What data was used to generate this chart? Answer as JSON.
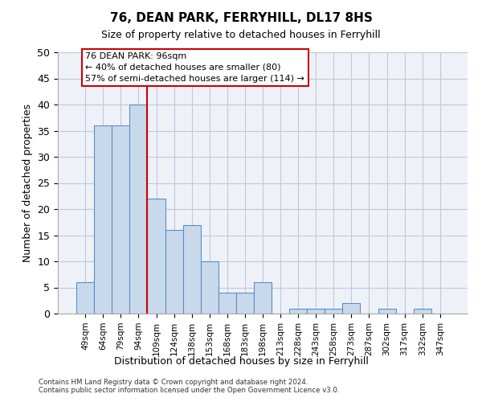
{
  "title": "76, DEAN PARK, FERRYHILL, DL17 8HS",
  "subtitle": "Size of property relative to detached houses in Ferryhill",
  "xlabel": "Distribution of detached houses by size in Ferryhill",
  "ylabel": "Number of detached properties",
  "bins": [
    "49sqm",
    "64sqm",
    "79sqm",
    "94sqm",
    "109sqm",
    "124sqm",
    "138sqm",
    "153sqm",
    "168sqm",
    "183sqm",
    "198sqm",
    "213sqm",
    "228sqm",
    "243sqm",
    "258sqm",
    "273sqm",
    "287sqm",
    "302sqm",
    "317sqm",
    "332sqm",
    "347sqm"
  ],
  "values": [
    6,
    36,
    36,
    40,
    22,
    16,
    17,
    10,
    4,
    4,
    6,
    0,
    1,
    1,
    1,
    2,
    0,
    1,
    0,
    1,
    0
  ],
  "bar_color": "#c9d9ec",
  "bar_edge_color": "#5a8fc3",
  "vline_x_index": 3.5,
  "vline_color": "#cc0000",
  "annotation_text": "76 DEAN PARK: 96sqm\n← 40% of detached houses are smaller (80)\n57% of semi-detached houses are larger (114) →",
  "annotation_box_color": "#ffffff",
  "annotation_box_edge_color": "#cc0000",
  "ylim": [
    0,
    50
  ],
  "yticks": [
    0,
    5,
    10,
    15,
    20,
    25,
    30,
    35,
    40,
    45,
    50
  ],
  "grid_color": "#c0c8d8",
  "background_color": "#eef2f8",
  "footer1": "Contains HM Land Registry data © Crown copyright and database right 2024.",
  "footer2": "Contains public sector information licensed under the Open Government Licence v3.0."
}
